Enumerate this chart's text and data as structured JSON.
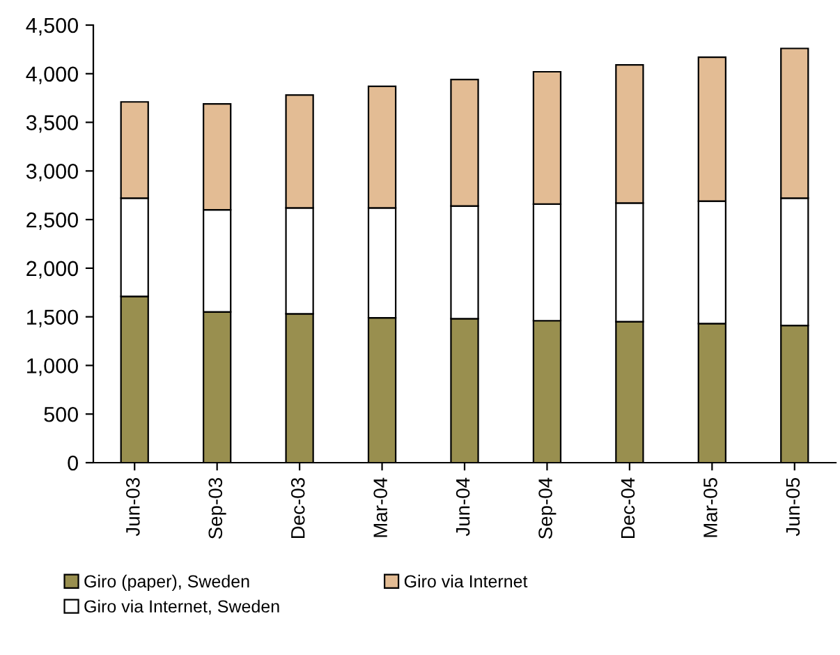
{
  "chart_data": {
    "type": "bar",
    "stacked": true,
    "categories": [
      "Jun-03",
      "Sep-03",
      "Dec-03",
      "Mar-04",
      "Jun-04",
      "Sep-04",
      "Dec-04",
      "Mar-05",
      "Jun-05"
    ],
    "series": [
      {
        "name": "Giro (paper), Sweden",
        "color": "#998f4f",
        "values": [
          1710,
          1550,
          1530,
          1490,
          1480,
          1460,
          1450,
          1430,
          1410
        ]
      },
      {
        "name": "Giro via Internet, Sweden",
        "color": "#ffffff",
        "values": [
          1010,
          1050,
          1090,
          1130,
          1160,
          1200,
          1220,
          1260,
          1310
        ]
      },
      {
        "name": "Giro via Internet",
        "color": "#e3bc94",
        "values": [
          990,
          1090,
          1160,
          1250,
          1300,
          1360,
          1420,
          1480,
          1540
        ]
      }
    ],
    "ylim": [
      0,
      4500
    ],
    "yticks": [
      {
        "value": 0,
        "label": "0"
      },
      {
        "value": 500,
        "label": "500"
      },
      {
        "value": 1000,
        "label": "1,000"
      },
      {
        "value": 1500,
        "label": "1,500"
      },
      {
        "value": 2000,
        "label": "2,000"
      },
      {
        "value": 2500,
        "label": "2,500"
      },
      {
        "value": 3000,
        "label": "3,000"
      },
      {
        "value": 3500,
        "label": "3,500"
      },
      {
        "value": 4000,
        "label": "4,000"
      },
      {
        "value": 4500,
        "label": "4,500"
      }
    ],
    "grid": false,
    "legend": "bottom"
  }
}
